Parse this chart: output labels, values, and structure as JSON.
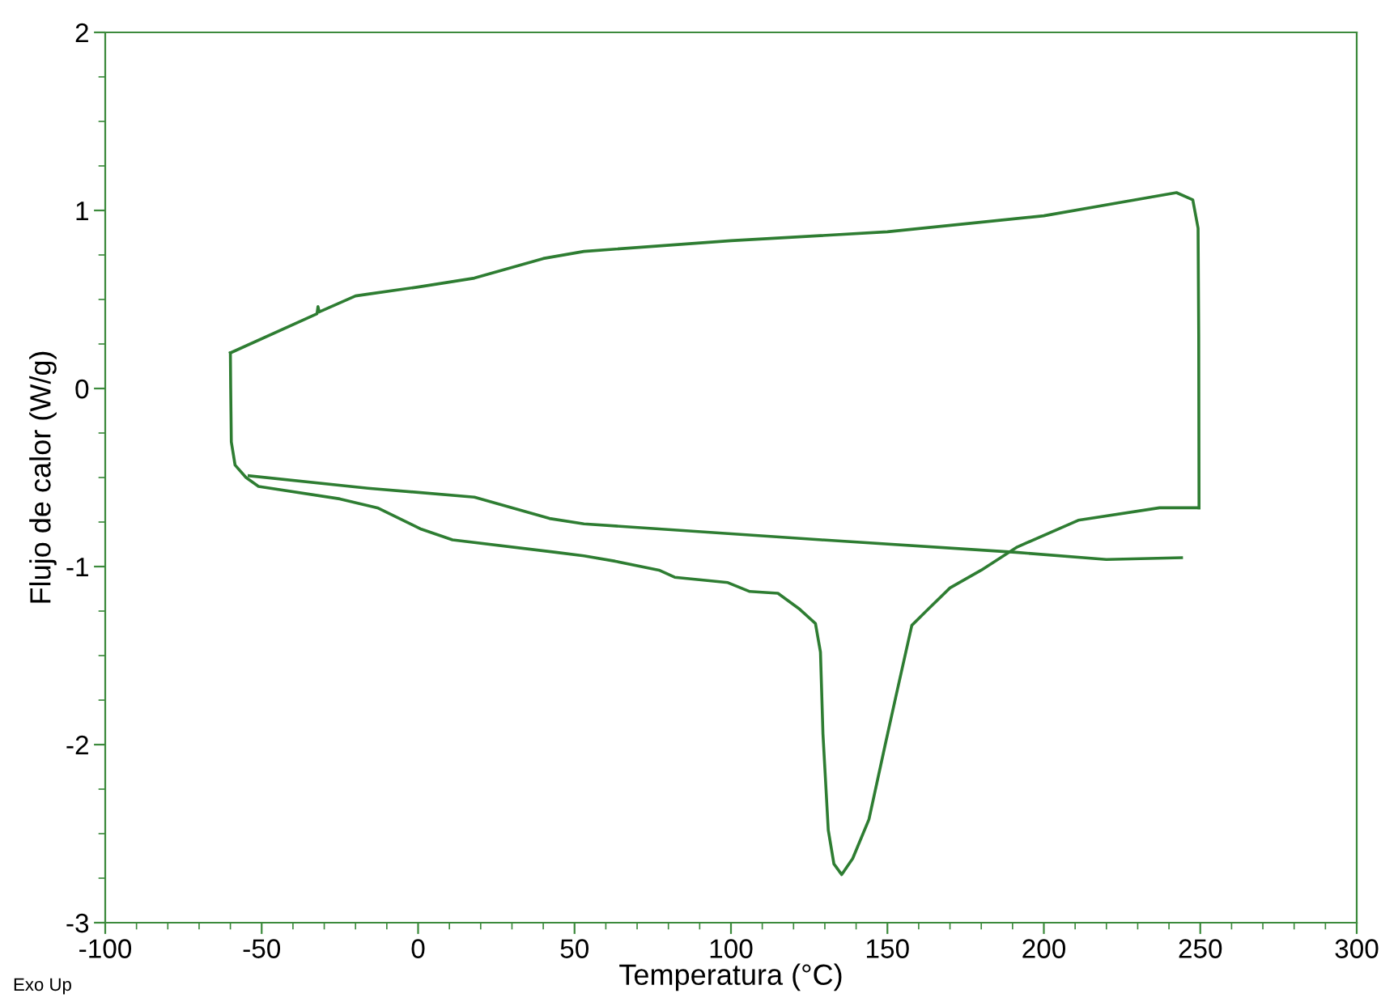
{
  "chart_data": {
    "type": "line",
    "xlabel": "Temperatura (°C)",
    "ylabel": "Flujo de calor (W/g)",
    "xlim": [
      -100,
      300
    ],
    "ylim": [
      -3,
      2
    ],
    "xticks": [
      -100,
      -50,
      0,
      50,
      100,
      150,
      200,
      250,
      300
    ],
    "yticks": [
      -3,
      -2,
      -1,
      0,
      1,
      2
    ],
    "grid": false,
    "legend": false,
    "annotations": [
      "Exo Up"
    ],
    "series": [
      {
        "color": "#2e7d32",
        "x": [
          -60,
          -59.9,
          -59.7,
          -58.5,
          -55,
          -51,
          -25,
          -13,
          1,
          11,
          44,
          53,
          63,
          77,
          82,
          99,
          106,
          115,
          122,
          127,
          128.6,
          129.4,
          131.1,
          132.9,
          135.4,
          138.9,
          144.1,
          149.3,
          152.7,
          157.8,
          163,
          170,
          180,
          191.5,
          211,
          237,
          249.6
        ],
        "values": [
          0.2,
          0,
          -0.3,
          -0.43,
          -0.5,
          -0.55,
          -0.62,
          -0.67,
          -0.79,
          -0.85,
          -0.92,
          -0.94,
          -0.97,
          -1.02,
          -1.06,
          -1.09,
          -1.14,
          -1.15,
          -1.24,
          -1.32,
          -1.48,
          -1.94,
          -2.48,
          -2.67,
          -2.73,
          -2.64,
          -2.42,
          -2,
          -1.73,
          -1.33,
          -1.24,
          -1.12,
          -1.02,
          -0.89,
          -0.74,
          -0.67,
          -0.67
        ]
      },
      {
        "color": "#2e7d32",
        "x": [
          -60,
          -32.3,
          -32,
          -31.6,
          -20,
          -16,
          0,
          18,
          40,
          53,
          100,
          150,
          200,
          242.4,
          247.6,
          249.3,
          249.5,
          249.6
        ],
        "values": [
          0.2,
          0.42,
          0.46,
          0.43,
          0.52,
          0.53,
          0.57,
          0.62,
          0.73,
          0.77,
          0.83,
          0.88,
          0.97,
          1.1,
          1.06,
          0.9,
          0.3,
          -0.67
        ]
      },
      {
        "color": "#2e7d32",
        "x": [
          -54,
          -16,
          18,
          42,
          53,
          129,
          191,
          220,
          244
        ],
        "values": [
          -0.49,
          -0.56,
          -0.61,
          -0.73,
          -0.76,
          -0.85,
          -0.92,
          -0.96,
          -0.95
        ]
      }
    ]
  }
}
